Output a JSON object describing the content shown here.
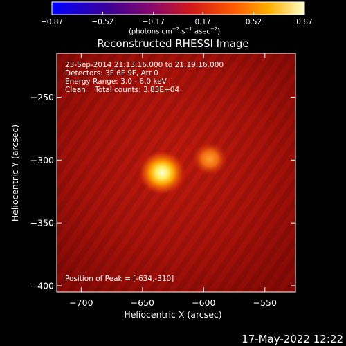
{
  "chart_data": {
    "type": "heatmap",
    "title": "Reconstructed RHESSI Image",
    "xlabel": "Heliocentric X (arcsec)",
    "ylabel": "Heliocentric Y (arcsec)",
    "xlim": [
      -720,
      -525
    ],
    "ylim": [
      -405,
      -215
    ],
    "x_ticks": [
      -700,
      -650,
      -600,
      -550
    ],
    "y_ticks": [
      -400,
      -350,
      -300,
      -250
    ],
    "x_tick_labels": [
      "−700",
      "−650",
      "−600",
      "−550"
    ],
    "y_tick_labels": [
      "−400",
      "−350",
      "−300",
      "−250"
    ],
    "colorbar": {
      "range": [
        -0.87,
        0.87
      ],
      "ticks": [
        -0.87,
        -0.52,
        -0.17,
        0.17,
        0.52,
        0.87
      ],
      "tick_labels": [
        "−0.87",
        "−0.52",
        "−0.17",
        "0.17",
        "0.52",
        "0.87"
      ],
      "units_prefix": "(photons cm",
      "units_exp1": "−2",
      "units_mid": " s",
      "units_exp2": "−1",
      "units_mid2": " asec",
      "units_exp3": "−2",
      "units_suffix": ")",
      "colormap": "hot/thermal"
    },
    "annotations": {
      "time_range": "23-Sep-2014 21:13:16.000 to 21:19:16.000",
      "detectors": "Detectors: 3F 6F 9F, Att 0",
      "energy": "Energy Range: 3.0 - 6.0 keV",
      "method": "Clean    Total counts: 3.83E+04",
      "peak": "Position of Peak = [-634,-310]"
    },
    "sources": [
      {
        "x": -634,
        "y": -310,
        "peak": 0.87
      },
      {
        "x": -595,
        "y": -299,
        "peak": 0.55
      }
    ]
  },
  "footer": {
    "timestamp": "17-May-2022 12:22"
  }
}
